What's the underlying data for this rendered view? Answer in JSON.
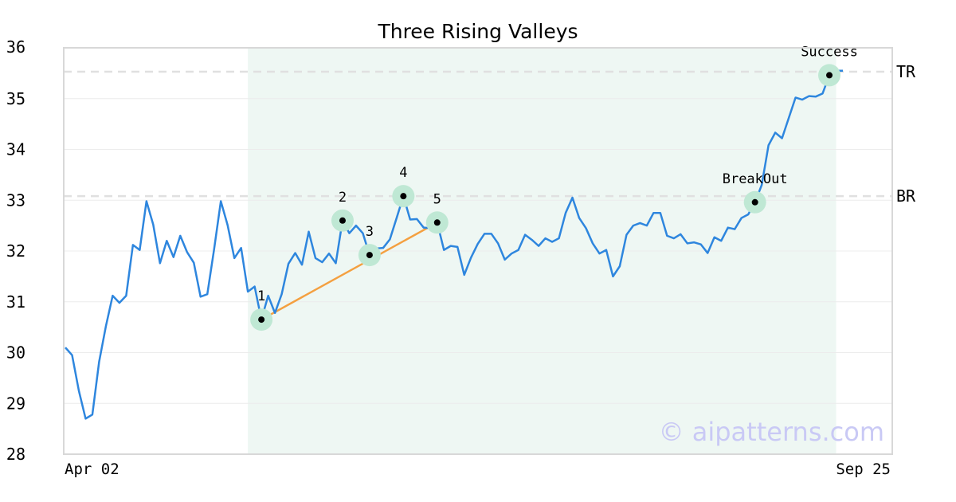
{
  "chart_data": {
    "type": "line",
    "title": "Three Rising Valleys",
    "xlabel": "",
    "ylabel": "",
    "ylim": [
      28,
      36
    ],
    "yticks": [
      28,
      29,
      30,
      31,
      32,
      33,
      34,
      35,
      36
    ],
    "x_tick_labels": [
      "Apr 02",
      "Sep 25"
    ],
    "grid": true,
    "watermark": "© aipatterns.com",
    "series": [
      {
        "color": "#2e86de",
        "values": [
          30.1,
          29.95,
          29.25,
          28.7,
          28.78,
          29.82,
          30.52,
          31.12,
          30.98,
          31.12,
          32.12,
          32.02,
          32.98,
          32.52,
          31.76,
          32.2,
          31.88,
          32.3,
          31.98,
          31.77,
          31.1,
          31.15,
          32.03,
          32.98,
          32.51,
          31.86,
          32.06,
          31.2,
          31.3,
          30.65,
          31.12,
          30.78,
          31.15,
          31.75,
          31.96,
          31.73,
          32.38,
          31.86,
          31.78,
          31.95,
          31.76,
          32.6,
          32.35,
          32.5,
          32.35,
          31.92,
          32.05,
          32.06,
          32.23,
          32.65,
          33.08,
          32.62,
          32.63,
          32.46,
          32.45,
          32.56,
          32.02,
          32.1,
          32.08,
          31.53,
          31.87,
          32.14,
          32.34,
          32.34,
          32.15,
          31.83,
          31.95,
          32.02,
          32.32,
          32.22,
          32.1,
          32.25,
          32.18,
          32.25,
          32.75,
          33.05,
          32.65,
          32.45,
          32.15,
          31.95,
          32.02,
          31.5,
          31.7,
          32.32,
          32.5,
          32.55,
          32.5,
          32.75,
          32.75,
          32.3,
          32.25,
          32.33,
          32.15,
          32.17,
          32.13,
          31.96,
          32.27,
          32.2,
          32.46,
          32.43,
          32.65,
          32.72,
          32.96,
          33.3,
          34.08,
          34.33,
          34.22,
          34.62,
          35.02,
          34.98,
          35.05,
          35.04,
          35.1,
          35.46,
          35.55,
          35.55
        ]
      }
    ],
    "levels": [
      {
        "label": "TR",
        "value": 35.53,
        "color": "#e0e0e0"
      },
      {
        "label": "BR",
        "value": 33.08,
        "color": "#e0e0e0"
      }
    ],
    "highlight_region": {
      "start_index": 27,
      "end_index": 114,
      "color": "#eef7f3"
    },
    "trendline": {
      "from_point": "1",
      "to_point": "5",
      "color": "#f4a040"
    },
    "pattern_points": [
      {
        "label": "1",
        "index": 29,
        "value": 30.65
      },
      {
        "label": "2",
        "index": 41,
        "value": 32.6
      },
      {
        "label": "3",
        "index": 45,
        "value": 31.92
      },
      {
        "label": "4",
        "index": 50,
        "value": 33.08
      },
      {
        "label": "5",
        "index": 55,
        "value": 32.56
      },
      {
        "label": "BreakOut",
        "index": 102,
        "value": 32.96
      },
      {
        "label": "Success",
        "index": 113,
        "value": 35.46
      }
    ],
    "marker_halo_color": "#bfe8d4"
  }
}
